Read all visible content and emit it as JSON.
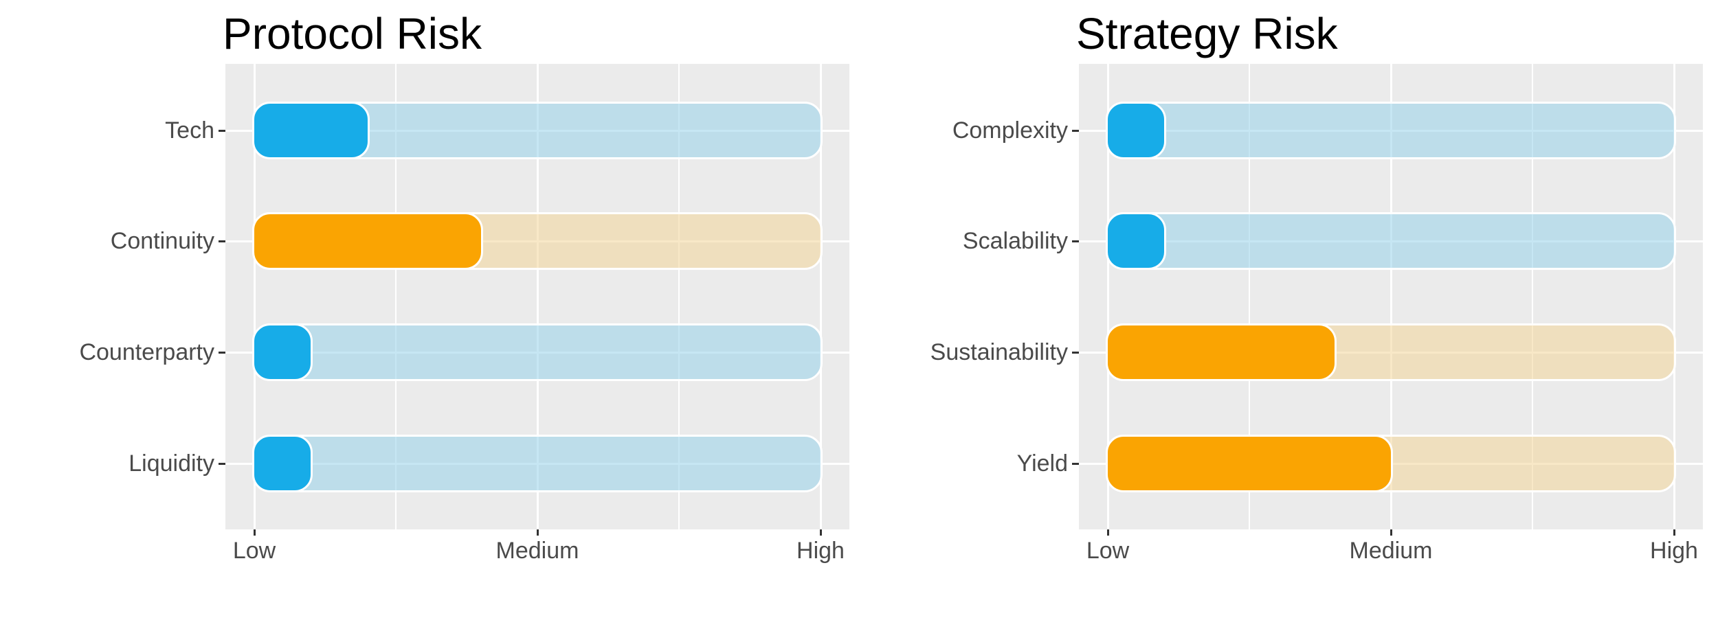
{
  "palette": {
    "panel_bg": "#ebebeb",
    "gridline": "#ffffff",
    "blue": "#17ace8",
    "blue_track": "rgba(151,209,234,0.55)",
    "orange": "#faa402",
    "orange_track": "rgba(242,213,153,0.55)",
    "title_color": "#000000",
    "axis_text_color": "#4a4a4a",
    "tick_mark_color": "#333333"
  },
  "chart_data": [
    {
      "type": "bar",
      "orientation": "horizontal",
      "title": "Protocol Risk",
      "categories": [
        "Tech",
        "Continuity",
        "Counterparty",
        "Liquidity"
      ],
      "values": [
        1.4,
        1.8,
        1.2,
        1.2
      ],
      "series_colors": [
        "blue",
        "orange",
        "blue",
        "blue"
      ],
      "track_value": 3,
      "x_range": [
        1,
        3
      ],
      "x_ticks": [
        {
          "label": "Low",
          "value": 1
        },
        {
          "label": "Medium",
          "value": 2
        },
        {
          "label": "High",
          "value": 3
        }
      ],
      "grid": "on",
      "legend": "none"
    },
    {
      "type": "bar",
      "orientation": "horizontal",
      "title": "Strategy Risk",
      "categories": [
        "Complexity",
        "Scalability",
        "Sustainability",
        "Yield"
      ],
      "values": [
        1.2,
        1.2,
        1.8,
        2.0
      ],
      "series_colors": [
        "blue",
        "blue",
        "orange",
        "orange"
      ],
      "track_value": 3,
      "x_range": [
        1,
        3
      ],
      "x_ticks": [
        {
          "label": "Low",
          "value": 1
        },
        {
          "label": "Medium",
          "value": 2
        },
        {
          "label": "High",
          "value": 3
        }
      ],
      "grid": "on",
      "legend": "none"
    }
  ]
}
